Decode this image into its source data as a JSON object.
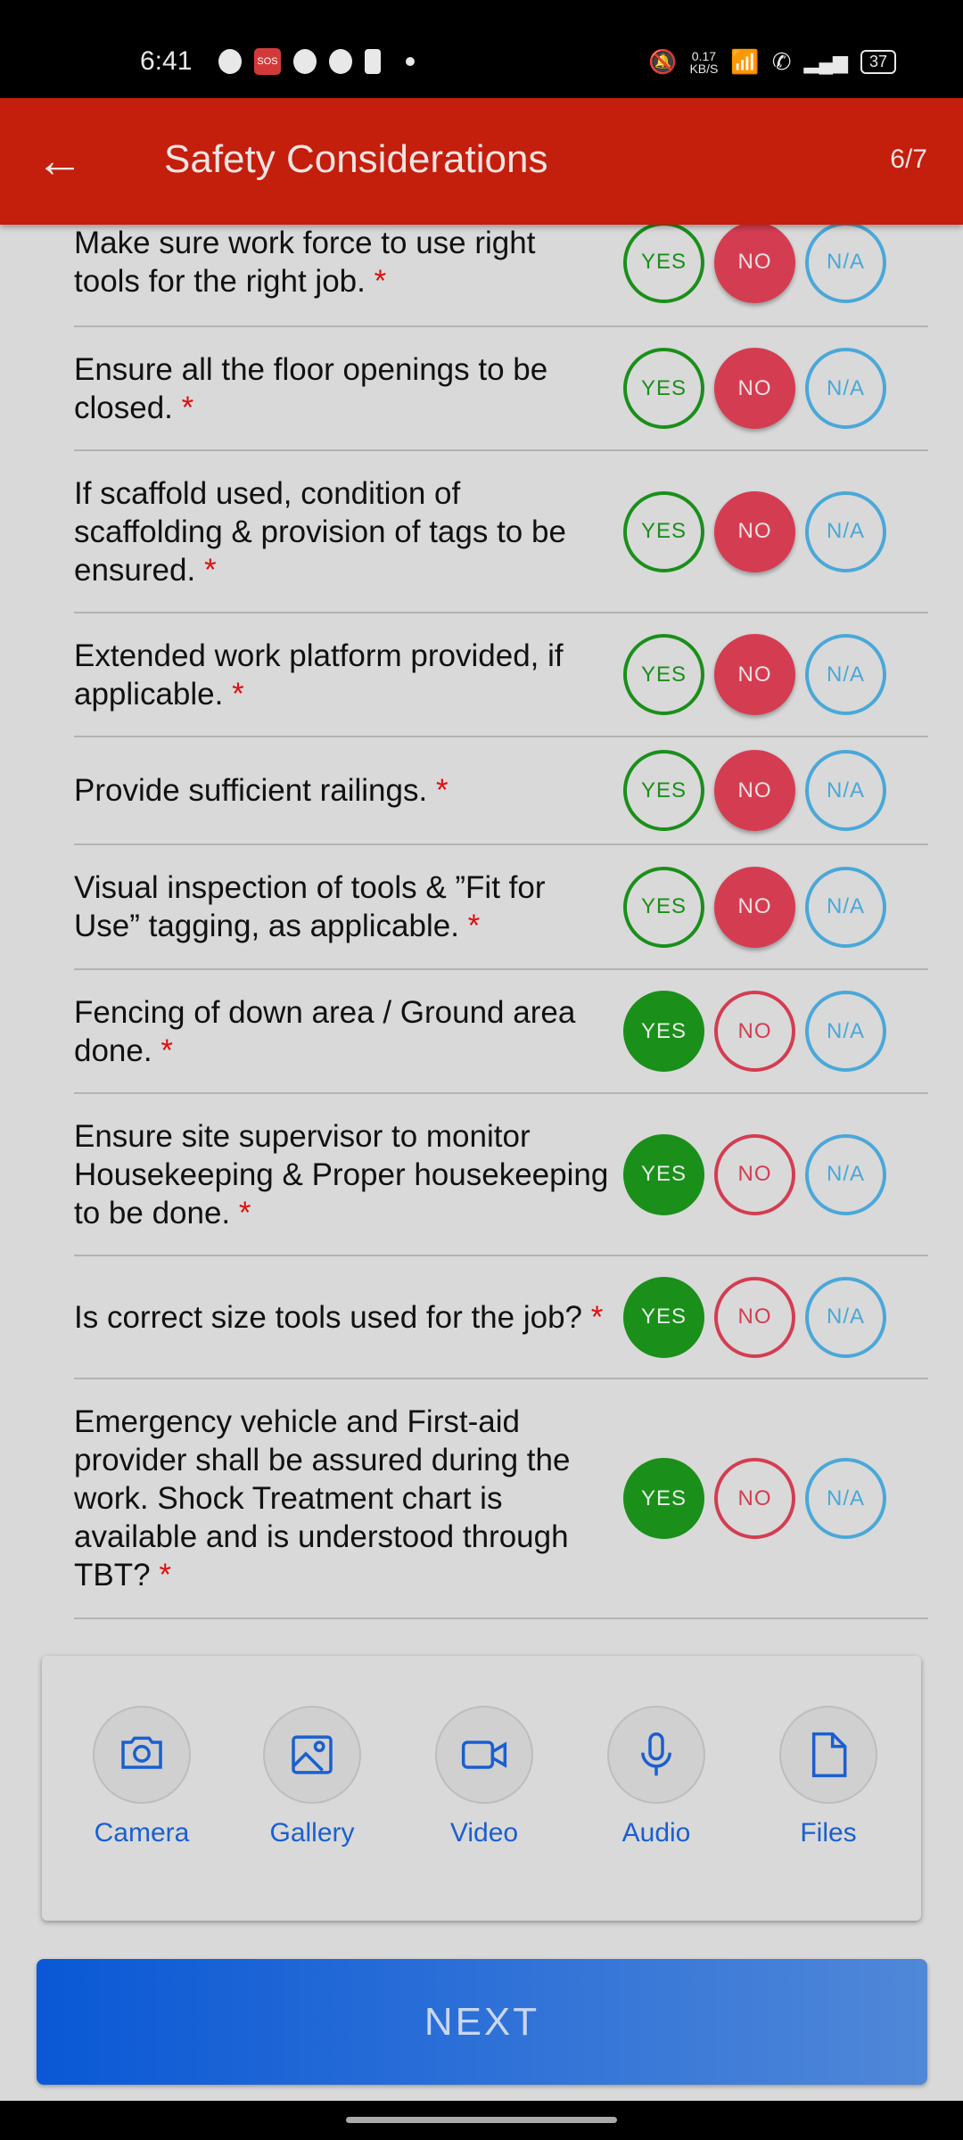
{
  "status_bar": {
    "time": "6:41",
    "network_speed": "0.17",
    "network_unit": "KB/S",
    "battery": "37"
  },
  "header": {
    "title": "Safety Considerations",
    "step": "6/7"
  },
  "option_labels": {
    "yes": "YES",
    "no": "NO",
    "na": "N/A"
  },
  "colors": {
    "header": "#c41e0c",
    "yes": "#1a8f1a",
    "no": "#d43d51",
    "na": "#4aa8d8",
    "accent": "#1a5fd0"
  },
  "questions": [
    {
      "text": "Make sure work force to use right tools for the right job.",
      "answer": "no"
    },
    {
      "text": "Ensure all the floor openings to be closed.",
      "answer": "no"
    },
    {
      "text": "If scaffold used, condition of scaffolding & provision of tags to be ensured.",
      "answer": "no"
    },
    {
      "text": "Extended work platform provided, if applicable.",
      "answer": "no"
    },
    {
      "text": "Provide sufficient railings.",
      "answer": "no"
    },
    {
      "text": "Visual inspection of tools & ”Fit for Use” tagging, as applicable.",
      "answer": "no"
    },
    {
      "text": "Fencing of down area / Ground area done.",
      "answer": "yes"
    },
    {
      "text": "Ensure site supervisor to monitor Housekeeping & Proper housekeeping to be done.",
      "answer": "yes"
    },
    {
      "text": "Is correct size tools used for the job?",
      "answer": "yes"
    },
    {
      "text": "Emergency vehicle and First-aid provider shall be assured during the work. Shock Treatment chart is available and is understood through TBT?",
      "answer": "yes"
    }
  ],
  "required_mark": "*",
  "media": [
    {
      "label": "Camera",
      "icon": "camera-icon"
    },
    {
      "label": "Gallery",
      "icon": "gallery-icon"
    },
    {
      "label": "Video",
      "icon": "video-icon"
    },
    {
      "label": "Audio",
      "icon": "microphone-icon"
    },
    {
      "label": "Files",
      "icon": "file-icon"
    }
  ],
  "next_label": "NEXT"
}
